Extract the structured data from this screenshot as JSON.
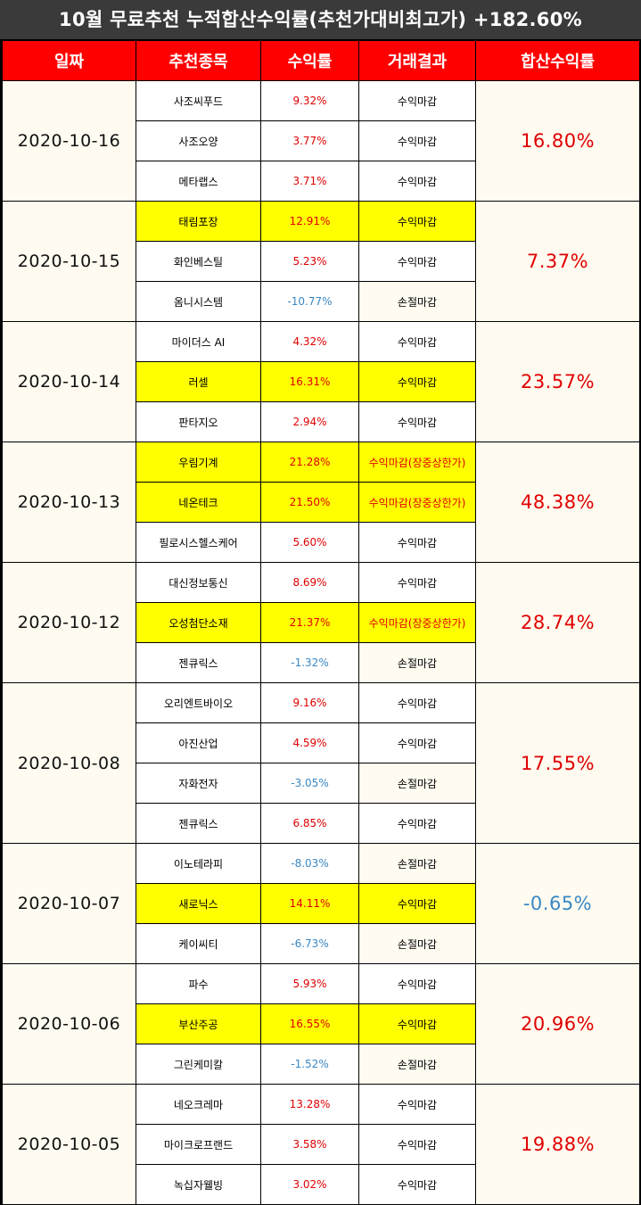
{
  "title": "10월 무료추천 누적합산수익률(추천가대비최고가) +182.60%",
  "headers": [
    "일짜",
    "추천종목",
    "수익률",
    "거래결과",
    "합산수익률"
  ],
  "colors": {
    "header_bg": "#ff0000",
    "profit": "#e00000",
    "loss": "#3a88c5",
    "highlight": "#ffff00",
    "date_bg": "#fffbf0"
  },
  "groups": [
    {
      "date": "2020-10-16",
      "sum": "16.80%",
      "sum_negative": false,
      "rows": [
        {
          "name": "사조씨푸드",
          "rate": "9.32%",
          "result": "수익마감",
          "highlight": false,
          "negative": false
        },
        {
          "name": "사조오양",
          "rate": "3.77%",
          "result": "수익마감",
          "highlight": false,
          "negative": false
        },
        {
          "name": "메타랩스",
          "rate": "3.71%",
          "result": "수익마감",
          "highlight": false,
          "negative": false
        }
      ]
    },
    {
      "date": "2020-10-15",
      "sum": "7.37%",
      "sum_negative": false,
      "rows": [
        {
          "name": "태림포장",
          "rate": "12.91%",
          "result": "수익마감",
          "highlight": true,
          "negative": false
        },
        {
          "name": "화인베스틸",
          "rate": "5.23%",
          "result": "수익마감",
          "highlight": false,
          "negative": false
        },
        {
          "name": "옴니시스템",
          "rate": "-10.77%",
          "result": "손절마감",
          "highlight": false,
          "negative": true
        }
      ]
    },
    {
      "date": "2020-10-14",
      "sum": "23.57%",
      "sum_negative": false,
      "rows": [
        {
          "name": "마이더스 AI",
          "rate": "4.32%",
          "result": "수익마감",
          "highlight": false,
          "negative": false
        },
        {
          "name": "러셀",
          "rate": "16.31%",
          "result": "수익마감",
          "highlight": true,
          "negative": false
        },
        {
          "name": "판타지오",
          "rate": "2.94%",
          "result": "수익마감",
          "highlight": false,
          "negative": false
        }
      ]
    },
    {
      "date": "2020-10-13",
      "sum": "48.38%",
      "sum_negative": false,
      "rows": [
        {
          "name": "우림기계",
          "rate": "21.28%",
          "result": "수익마감(장중상한가)",
          "highlight": true,
          "negative": false
        },
        {
          "name": "네온테크",
          "rate": "21.50%",
          "result": "수익마감(장중상한가)",
          "highlight": true,
          "negative": false
        },
        {
          "name": "필로시스헬스케어",
          "rate": "5.60%",
          "result": "수익마감",
          "highlight": false,
          "negative": false
        }
      ]
    },
    {
      "date": "2020-10-12",
      "sum": "28.74%",
      "sum_negative": false,
      "rows": [
        {
          "name": "대신정보통신",
          "rate": "8.69%",
          "result": "수익마감",
          "highlight": false,
          "negative": false
        },
        {
          "name": "오성첨단소재",
          "rate": "21.37%",
          "result": "수익마감(장중상한가)",
          "highlight": true,
          "negative": false
        },
        {
          "name": "젠큐릭스",
          "rate": "-1.32%",
          "result": "손절마감",
          "highlight": false,
          "negative": true
        }
      ]
    },
    {
      "date": "2020-10-08",
      "sum": "17.55%",
      "sum_negative": false,
      "rows": [
        {
          "name": "오리엔트바이오",
          "rate": "9.16%",
          "result": "수익마감",
          "highlight": false,
          "negative": false
        },
        {
          "name": "아진산업",
          "rate": "4.59%",
          "result": "수익마감",
          "highlight": false,
          "negative": false
        },
        {
          "name": "자화전자",
          "rate": "-3.05%",
          "result": "손절마감",
          "highlight": false,
          "negative": true
        },
        {
          "name": "젠큐릭스",
          "rate": "6.85%",
          "result": "수익마감",
          "highlight": false,
          "negative": false
        }
      ]
    },
    {
      "date": "2020-10-07",
      "sum": "-0.65%",
      "sum_negative": true,
      "rows": [
        {
          "name": "이노테라피",
          "rate": "-8.03%",
          "result": "손절마감",
          "highlight": false,
          "negative": true
        },
        {
          "name": "새로닉스",
          "rate": "14.11%",
          "result": "수익마감",
          "highlight": true,
          "negative": false
        },
        {
          "name": "케이씨티",
          "rate": "-6.73%",
          "result": "손절마감",
          "highlight": false,
          "negative": true
        }
      ]
    },
    {
      "date": "2020-10-06",
      "sum": "20.96%",
      "sum_negative": false,
      "rows": [
        {
          "name": "파수",
          "rate": "5.93%",
          "result": "수익마감",
          "highlight": false,
          "negative": false
        },
        {
          "name": "부산주공",
          "rate": "16.55%",
          "result": "수익마감",
          "highlight": true,
          "negative": false
        },
        {
          "name": "그린케미칼",
          "rate": "-1.52%",
          "result": "손절마감",
          "highlight": false,
          "negative": true
        }
      ]
    },
    {
      "date": "2020-10-05",
      "sum": "19.88%",
      "sum_negative": false,
      "rows": [
        {
          "name": "네오크레마",
          "rate": "13.28%",
          "result": "수익마감",
          "highlight": false,
          "negative": false
        },
        {
          "name": "마이크로프랜드",
          "rate": "3.58%",
          "result": "수익마감",
          "highlight": false,
          "negative": false
        },
        {
          "name": "녹십자웰빙",
          "rate": "3.02%",
          "result": "수익마감",
          "highlight": false,
          "negative": false
        }
      ]
    }
  ]
}
